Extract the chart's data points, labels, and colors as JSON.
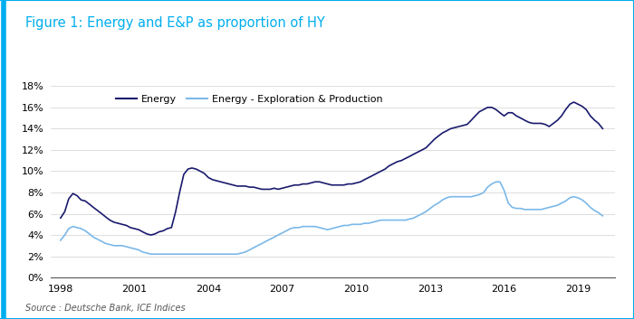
{
  "title": "Figure 1: Energy and E&P as proportion of HY",
  "source": "Source : Deutsche Bank, ICE Indices",
  "title_color": "#00AEEF",
  "border_color": "#00AEEF",
  "background_color": "#ffffff",
  "legend": [
    "Energy",
    "Energy - Exploration & Production"
  ],
  "energy_color": "#1a1a6e",
  "ep_color": "#7bb8e8",
  "ylim": [
    0,
    0.18
  ],
  "yticks": [
    0,
    0.02,
    0.04,
    0.06,
    0.08,
    0.1,
    0.12,
    0.14,
    0.16,
    0.18
  ],
  "xticks": [
    1998,
    2001,
    2004,
    2007,
    2010,
    2013,
    2016,
    2019
  ],
  "xlim": [
    1997.6,
    2020.5
  ],
  "energy_x": [
    1998.0,
    1998.17,
    1998.33,
    1998.5,
    1998.67,
    1998.83,
    1999.0,
    1999.17,
    1999.33,
    1999.5,
    1999.67,
    1999.83,
    2000.0,
    2000.17,
    2000.33,
    2000.5,
    2000.67,
    2000.83,
    2001.0,
    2001.17,
    2001.33,
    2001.5,
    2001.67,
    2001.83,
    2002.0,
    2002.17,
    2002.33,
    2002.5,
    2002.67,
    2002.83,
    2003.0,
    2003.17,
    2003.33,
    2003.5,
    2003.67,
    2003.83,
    2004.0,
    2004.17,
    2004.33,
    2004.5,
    2004.67,
    2004.83,
    2005.0,
    2005.17,
    2005.33,
    2005.5,
    2005.67,
    2005.83,
    2006.0,
    2006.17,
    2006.33,
    2006.5,
    2006.67,
    2006.83,
    2007.0,
    2007.17,
    2007.33,
    2007.5,
    2007.67,
    2007.83,
    2008.0,
    2008.17,
    2008.33,
    2008.5,
    2008.67,
    2008.83,
    2009.0,
    2009.17,
    2009.33,
    2009.5,
    2009.67,
    2009.83,
    2010.0,
    2010.17,
    2010.33,
    2010.5,
    2010.67,
    2010.83,
    2011.0,
    2011.17,
    2011.33,
    2011.5,
    2011.67,
    2011.83,
    2012.0,
    2012.17,
    2012.33,
    2012.5,
    2012.67,
    2012.83,
    2013.0,
    2013.17,
    2013.33,
    2013.5,
    2013.67,
    2013.83,
    2014.0,
    2014.17,
    2014.33,
    2014.5,
    2014.67,
    2014.83,
    2015.0,
    2015.17,
    2015.33,
    2015.5,
    2015.67,
    2015.83,
    2016.0,
    2016.17,
    2016.33,
    2016.5,
    2016.67,
    2016.83,
    2017.0,
    2017.17,
    2017.33,
    2017.5,
    2017.67,
    2017.83,
    2018.0,
    2018.17,
    2018.33,
    2018.5,
    2018.67,
    2018.83,
    2019.0,
    2019.17,
    2019.33,
    2019.5,
    2019.67,
    2019.83,
    2020.0
  ],
  "energy_y": [
    0.056,
    0.062,
    0.074,
    0.079,
    0.077,
    0.073,
    0.072,
    0.069,
    0.066,
    0.063,
    0.06,
    0.057,
    0.054,
    0.052,
    0.051,
    0.05,
    0.049,
    0.047,
    0.046,
    0.045,
    0.043,
    0.041,
    0.04,
    0.041,
    0.043,
    0.044,
    0.046,
    0.047,
    0.062,
    0.08,
    0.097,
    0.102,
    0.103,
    0.102,
    0.1,
    0.098,
    0.094,
    0.092,
    0.091,
    0.09,
    0.089,
    0.088,
    0.087,
    0.086,
    0.086,
    0.086,
    0.085,
    0.085,
    0.084,
    0.083,
    0.083,
    0.083,
    0.084,
    0.083,
    0.084,
    0.085,
    0.086,
    0.087,
    0.087,
    0.088,
    0.088,
    0.089,
    0.09,
    0.09,
    0.089,
    0.088,
    0.087,
    0.087,
    0.087,
    0.087,
    0.088,
    0.088,
    0.089,
    0.09,
    0.092,
    0.094,
    0.096,
    0.098,
    0.1,
    0.102,
    0.105,
    0.107,
    0.109,
    0.11,
    0.112,
    0.114,
    0.116,
    0.118,
    0.12,
    0.122,
    0.126,
    0.13,
    0.133,
    0.136,
    0.138,
    0.14,
    0.141,
    0.142,
    0.143,
    0.144,
    0.148,
    0.152,
    0.156,
    0.158,
    0.16,
    0.16,
    0.158,
    0.155,
    0.152,
    0.155,
    0.155,
    0.152,
    0.15,
    0.148,
    0.146,
    0.145,
    0.145,
    0.145,
    0.144,
    0.142,
    0.145,
    0.148,
    0.152,
    0.158,
    0.163,
    0.165,
    0.163,
    0.161,
    0.158,
    0.152,
    0.148,
    0.145,
    0.14
  ],
  "ep_x": [
    1998.0,
    1998.17,
    1998.33,
    1998.5,
    1998.67,
    1998.83,
    1999.0,
    1999.17,
    1999.33,
    1999.5,
    1999.67,
    1999.83,
    2000.0,
    2000.17,
    2000.33,
    2000.5,
    2000.67,
    2000.83,
    2001.0,
    2001.17,
    2001.33,
    2001.5,
    2001.67,
    2001.83,
    2002.0,
    2002.17,
    2002.33,
    2002.5,
    2002.67,
    2002.83,
    2003.0,
    2003.17,
    2003.33,
    2003.5,
    2003.67,
    2003.83,
    2004.0,
    2004.17,
    2004.33,
    2004.5,
    2004.67,
    2004.83,
    2005.0,
    2005.17,
    2005.33,
    2005.5,
    2005.67,
    2005.83,
    2006.0,
    2006.17,
    2006.33,
    2006.5,
    2006.67,
    2006.83,
    2007.0,
    2007.17,
    2007.33,
    2007.5,
    2007.67,
    2007.83,
    2008.0,
    2008.17,
    2008.33,
    2008.5,
    2008.67,
    2008.83,
    2009.0,
    2009.17,
    2009.33,
    2009.5,
    2009.67,
    2009.83,
    2010.0,
    2010.17,
    2010.33,
    2010.5,
    2010.67,
    2010.83,
    2011.0,
    2011.17,
    2011.33,
    2011.5,
    2011.67,
    2011.83,
    2012.0,
    2012.17,
    2012.33,
    2012.5,
    2012.67,
    2012.83,
    2013.0,
    2013.17,
    2013.33,
    2013.5,
    2013.67,
    2013.83,
    2014.0,
    2014.17,
    2014.33,
    2014.5,
    2014.67,
    2014.83,
    2015.0,
    2015.17,
    2015.33,
    2015.5,
    2015.67,
    2015.83,
    2016.0,
    2016.17,
    2016.33,
    2016.5,
    2016.67,
    2016.83,
    2017.0,
    2017.17,
    2017.33,
    2017.5,
    2017.67,
    2017.83,
    2018.0,
    2018.17,
    2018.33,
    2018.5,
    2018.67,
    2018.83,
    2019.0,
    2019.17,
    2019.33,
    2019.5,
    2019.67,
    2019.83,
    2020.0
  ],
  "ep_y": [
    0.035,
    0.04,
    0.046,
    0.048,
    0.047,
    0.046,
    0.044,
    0.041,
    0.038,
    0.036,
    0.034,
    0.032,
    0.031,
    0.03,
    0.03,
    0.03,
    0.029,
    0.028,
    0.027,
    0.026,
    0.024,
    0.023,
    0.022,
    0.022,
    0.022,
    0.022,
    0.022,
    0.022,
    0.022,
    0.022,
    0.022,
    0.022,
    0.022,
    0.022,
    0.022,
    0.022,
    0.022,
    0.022,
    0.022,
    0.022,
    0.022,
    0.022,
    0.022,
    0.022,
    0.023,
    0.024,
    0.026,
    0.028,
    0.03,
    0.032,
    0.034,
    0.036,
    0.038,
    0.04,
    0.042,
    0.044,
    0.046,
    0.047,
    0.047,
    0.048,
    0.048,
    0.048,
    0.048,
    0.047,
    0.046,
    0.045,
    0.046,
    0.047,
    0.048,
    0.049,
    0.049,
    0.05,
    0.05,
    0.05,
    0.051,
    0.051,
    0.052,
    0.053,
    0.054,
    0.054,
    0.054,
    0.054,
    0.054,
    0.054,
    0.054,
    0.055,
    0.056,
    0.058,
    0.06,
    0.062,
    0.065,
    0.068,
    0.07,
    0.073,
    0.075,
    0.076,
    0.076,
    0.076,
    0.076,
    0.076,
    0.076,
    0.077,
    0.078,
    0.08,
    0.085,
    0.088,
    0.09,
    0.09,
    0.082,
    0.07,
    0.066,
    0.065,
    0.065,
    0.064,
    0.064,
    0.064,
    0.064,
    0.064,
    0.065,
    0.066,
    0.067,
    0.068,
    0.07,
    0.072,
    0.075,
    0.076,
    0.075,
    0.073,
    0.07,
    0.066,
    0.063,
    0.061,
    0.058
  ]
}
